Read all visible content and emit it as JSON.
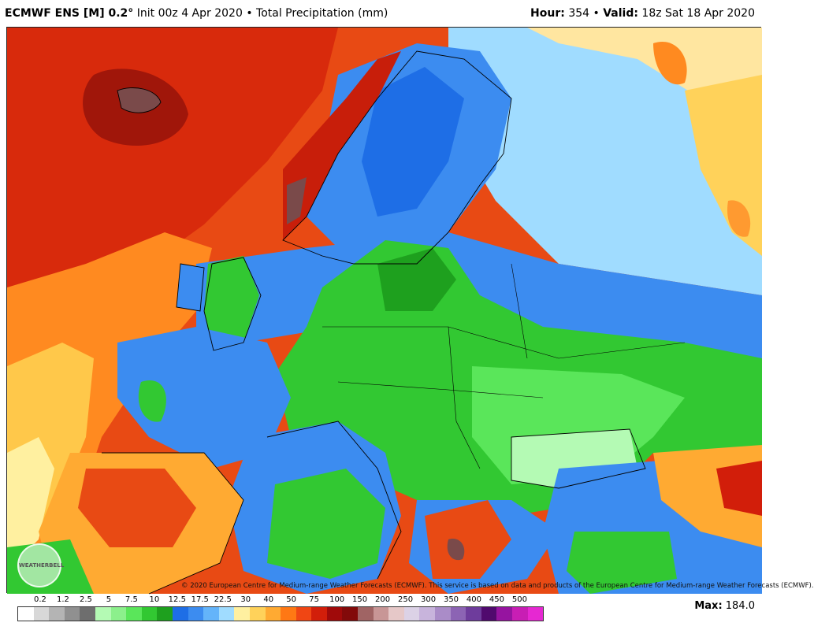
{
  "header": {
    "model": "ECMWF ENS [M] 0.2",
    "degree": "°",
    "init": "Init 00z 4 Apr 2020",
    "bullet": "•",
    "product": "Total Precipitation (mm)",
    "hour_label": "Hour:",
    "hour_value": "354",
    "valid_label": "Valid:",
    "valid_value": "18z Sat 18 Apr 2020"
  },
  "copyright": "© 2020 European Centre for Medium-range Weather Forecasts (ECMWF). This service is based on data and products of the European Centre for Medium-range Weather Forecasts (ECMWF).",
  "logo_text": "WEATHERBELL",
  "legend": {
    "ticks": [
      "0.2",
      "1.2",
      "2.5",
      "5",
      "7.5",
      "10",
      "12.5",
      "17.5",
      "22.5",
      "30",
      "40",
      "50",
      "75",
      "100",
      "150",
      "200",
      "250",
      "300",
      "350",
      "400",
      "450",
      "500"
    ],
    "colors": [
      "#ffffff",
      "#d8d8d8",
      "#b4b4b4",
      "#909090",
      "#6e6e6e",
      "#b4fab4",
      "#8cf08c",
      "#5ae65a",
      "#32c832",
      "#1ea01e",
      "#1e6ee6",
      "#3c8cf0",
      "#64b4fa",
      "#a0dcff",
      "#fff0a0",
      "#ffd25a",
      "#ffaa32",
      "#ff7814",
      "#f04614",
      "#d21e0a",
      "#a00a0a",
      "#820a0a",
      "#a06464",
      "#c89696",
      "#e6c8c8",
      "#dcd2e6",
      "#c8b4dc",
      "#aa8cc8",
      "#8c64b4",
      "#6e3c9c",
      "#500a6e",
      "#9614a0",
      "#c81eb4",
      "#e628d2"
    ]
  },
  "max_label": "Max:",
  "max_value": "184.0"
}
